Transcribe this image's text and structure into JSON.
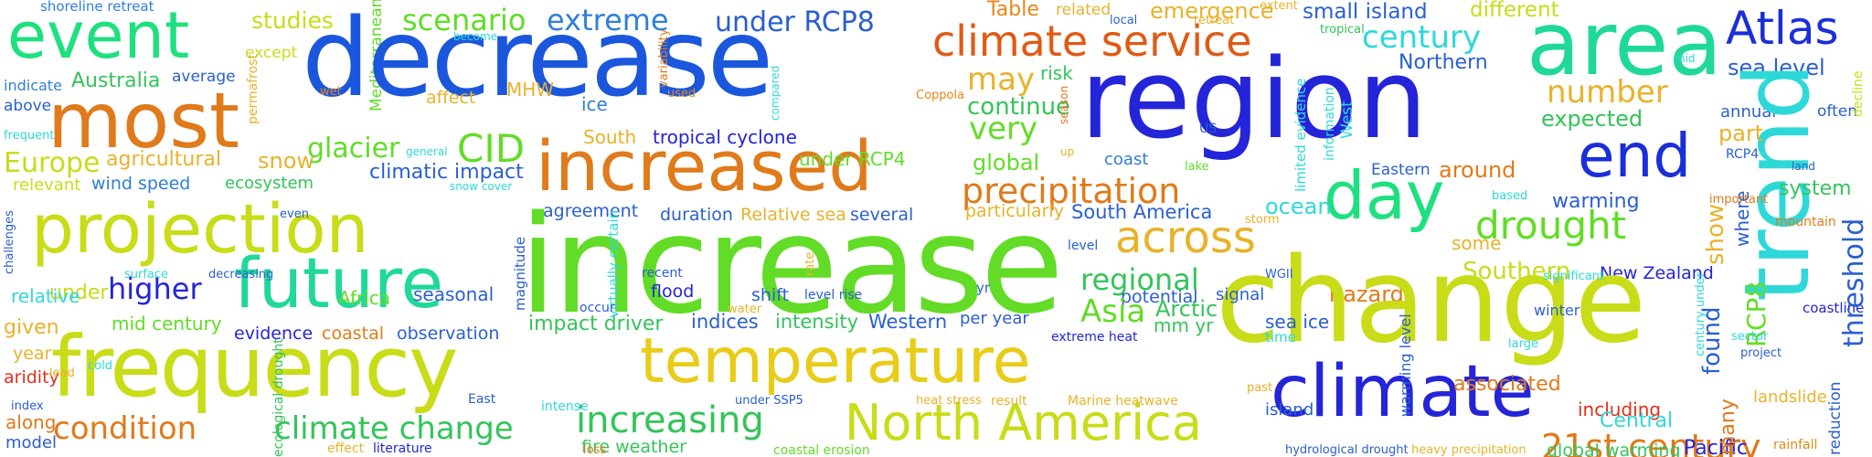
{
  "words": [
    {
      "text": "shoreline retreat",
      "color": "#2f7fd8"
    },
    {
      "text": "event",
      "color": "#1fe07f"
    },
    {
      "text": "studies",
      "color": "#c8dc18"
    },
    {
      "text": "Mediterranean",
      "color": "#62dc26"
    },
    {
      "text": "decrease",
      "color": "#1a57dc"
    },
    {
      "text": "scenario",
      "color": "#62dc26"
    },
    {
      "text": "extreme",
      "color": "#2f7fd8"
    },
    {
      "text": "under RCP8",
      "color": "#2a5fd0"
    },
    {
      "text": "Table",
      "color": "#e88618"
    },
    {
      "text": "related",
      "color": "#e8b22a"
    },
    {
      "text": "emergence",
      "color": "#e8b22a"
    },
    {
      "text": "small island",
      "color": "#2a5fd0"
    },
    {
      "text": "different",
      "color": "#c8dc18"
    },
    {
      "text": "Atlas",
      "color": "#1a2fd8"
    },
    {
      "text": "area",
      "color": "#1fd89a"
    },
    {
      "text": "most",
      "color": "#e07a1a"
    },
    {
      "text": "except",
      "color": "#c8dc18"
    },
    {
      "text": "Australia",
      "color": "#33c45a"
    },
    {
      "text": "average",
      "color": "#2a5fd0"
    },
    {
      "text": "indicate",
      "color": "#2f7fd8"
    },
    {
      "text": "above",
      "color": "#2a5fd0"
    },
    {
      "text": "permafrost",
      "color": "#e8b22a"
    },
    {
      "text": "climate service",
      "color": "#e05a14"
    },
    {
      "text": "century",
      "color": "#2fd8d8"
    },
    {
      "text": "Northern",
      "color": "#2a5fd0"
    },
    {
      "text": "region",
      "color": "#2424d8"
    },
    {
      "text": "sea level",
      "color": "#2a5fd0"
    },
    {
      "text": "may",
      "color": "#e8b22a"
    },
    {
      "text": "risk",
      "color": "#33c45a"
    },
    {
      "text": "ice",
      "color": "#2f7fd8"
    },
    {
      "text": "MHW",
      "color": "#e8b22a"
    },
    {
      "text": "affect",
      "color": "#e8b22a"
    },
    {
      "text": "wet",
      "color": "#e88618"
    },
    {
      "text": "used",
      "color": "#e88618"
    },
    {
      "text": "compared",
      "color": "#2fd8d8"
    },
    {
      "text": "Coppola",
      "color": "#e88618"
    },
    {
      "text": "number",
      "color": "#e8b22a"
    },
    {
      "text": "annual",
      "color": "#2a5fd0"
    },
    {
      "text": "often",
      "color": "#2a5fd0"
    },
    {
      "text": "frequent",
      "color": "#2fd8d8"
    },
    {
      "text": "Europe",
      "color": "#c8dc18"
    },
    {
      "text": "agricultural",
      "color": "#e8b22a"
    },
    {
      "text": "snow",
      "color": "#e8b22a"
    },
    {
      "text": "glacier",
      "color": "#62dc26"
    },
    {
      "text": "CID",
      "color": "#62dc26"
    },
    {
      "text": "South",
      "color": "#e8b22a"
    },
    {
      "text": "tropical cyclone",
      "color": "#2424d8"
    },
    {
      "text": "increased",
      "color": "#e07a1a"
    },
    {
      "text": "continue",
      "color": "#33c45a"
    },
    {
      "text": "very",
      "color": "#62dc26"
    },
    {
      "text": "expected",
      "color": "#33c45a"
    },
    {
      "text": "end",
      "color": "#1a2fd8"
    },
    {
      "text": "trend",
      "color": "#2fd8d8"
    },
    {
      "text": "relevant",
      "color": "#c8dc18"
    },
    {
      "text": "wind speed",
      "color": "#2f7fd8"
    },
    {
      "text": "ecosystem",
      "color": "#33c45a"
    },
    {
      "text": "under RCP4",
      "color": "#62dc26"
    },
    {
      "text": "climatic impact",
      "color": "#2a5fd0"
    },
    {
      "text": "global",
      "color": "#62dc26"
    },
    {
      "text": "coast",
      "color": "#2f7fd8"
    },
    {
      "text": "precipitation",
      "color": "#e07a1a"
    },
    {
      "text": "day",
      "color": "#1fe07f"
    },
    {
      "text": "around",
      "color": "#e07a1a"
    },
    {
      "text": "part",
      "color": "#e8b22a"
    },
    {
      "text": "projection",
      "color": "#c8dc18"
    },
    {
      "text": "agreement",
      "color": "#2a5fd0"
    },
    {
      "text": "South America",
      "color": "#2a5fd0"
    },
    {
      "text": "ocean",
      "color": "#2fd8d8"
    },
    {
      "text": "warming",
      "color": "#2a5fd0"
    },
    {
      "text": "system",
      "color": "#33c45a"
    },
    {
      "text": "increase",
      "color": "#62dc26"
    },
    {
      "text": "Relative sea",
      "color": "#e8b22a"
    },
    {
      "text": "duration",
      "color": "#2a5fd0"
    },
    {
      "text": "several",
      "color": "#2a5fd0"
    },
    {
      "text": "particularly",
      "color": "#e8b22a"
    },
    {
      "text": "drought",
      "color": "#62dc26"
    },
    {
      "text": "some",
      "color": "#e8b22a"
    },
    {
      "text": "show",
      "color": "#e8b22a"
    },
    {
      "text": "where",
      "color": "#2a5fd0"
    },
    {
      "text": "across",
      "color": "#e8b22a"
    },
    {
      "text": "future",
      "color": "#1fd89a"
    },
    {
      "text": "higher",
      "color": "#2424d8"
    },
    {
      "text": "under",
      "color": "#c8dc18"
    },
    {
      "text": "seasonal",
      "color": "#2a5fd0"
    },
    {
      "text": "Africa",
      "color": "#62dc26"
    },
    {
      "text": "relative",
      "color": "#2fd8d8"
    },
    {
      "text": "flood",
      "color": "#2424d8"
    },
    {
      "text": "regional",
      "color": "#33c45a"
    },
    {
      "text": "hazard",
      "color": "#e07a1a"
    },
    {
      "text": "Southern",
      "color": "#c8dc18"
    },
    {
      "text": "New Zealand",
      "color": "#2424d8"
    },
    {
      "text": "change",
      "color": "#c8dc18"
    },
    {
      "text": "shift",
      "color": "#2a5fd0"
    },
    {
      "text": "potential",
      "color": "#2a5fd0"
    },
    {
      "text": "signal",
      "color": "#2a5fd0"
    },
    {
      "text": "Asia",
      "color": "#62dc26"
    },
    {
      "text": "Arctic",
      "color": "#33c45a"
    },
    {
      "text": "given",
      "color": "#e8b22a"
    },
    {
      "text": "mid century",
      "color": "#62dc26"
    },
    {
      "text": "indices",
      "color": "#2a5fd0"
    },
    {
      "text": "intensity",
      "color": "#33c45a"
    },
    {
      "text": "Western",
      "color": "#2a5fd0"
    },
    {
      "text": "per year",
      "color": "#2a5fd0"
    },
    {
      "text": "mm yr",
      "color": "#33c45a"
    },
    {
      "text": "sea ice",
      "color": "#2a5fd0"
    },
    {
      "text": "winter",
      "color": "#2a5fd0"
    },
    {
      "text": "coastline",
      "color": "#2424d8"
    },
    {
      "text": "evidence",
      "color": "#2424d8"
    },
    {
      "text": "coastal",
      "color": "#e07a1a"
    },
    {
      "text": "observation",
      "color": "#2a5fd0"
    },
    {
      "text": "impact driver",
      "color": "#33c45a"
    },
    {
      "text": "year",
      "color": "#e8b22a"
    },
    {
      "text": "frequency",
      "color": "#c8dc18"
    },
    {
      "text": "temperature",
      "color": "#e8cc18"
    },
    {
      "text": "extreme heat",
      "color": "#2424d8"
    },
    {
      "text": "time",
      "color": "#2fd8d8"
    },
    {
      "text": "large",
      "color": "#2fd8d8"
    },
    {
      "text": "project",
      "color": "#2a5fd0"
    },
    {
      "text": "aridity",
      "color": "#e0301a"
    },
    {
      "text": "climate",
      "color": "#2424d8"
    },
    {
      "text": "associated",
      "color": "#e07a1a"
    },
    {
      "text": "found",
      "color": "#2a5fd0"
    },
    {
      "text": "RCP8",
      "color": "#62dc26"
    },
    {
      "text": "threshold",
      "color": "#2a5fd0"
    },
    {
      "text": "condition",
      "color": "#e07a1a"
    },
    {
      "text": "climate change",
      "color": "#33c45a"
    },
    {
      "text": "increasing",
      "color": "#33c45a"
    },
    {
      "text": "North America",
      "color": "#c8dc18"
    },
    {
      "text": "island",
      "color": "#2a5fd0"
    },
    {
      "text": "including",
      "color": "#e0301a"
    },
    {
      "text": "Central",
      "color": "#2fd8d8"
    },
    {
      "text": "21st century",
      "color": "#e07a1a"
    },
    {
      "text": "along",
      "color": "#e07a1a"
    },
    {
      "text": "model",
      "color": "#2a5fd0"
    },
    {
      "text": "fire weather",
      "color": "#33c45a"
    },
    {
      "text": "global warming",
      "color": "#33c45a"
    },
    {
      "text": "Pacific",
      "color": "#2424d8"
    },
    {
      "text": "many",
      "color": "#e07a1a"
    },
    {
      "text": "landslide",
      "color": "#e8b22a"
    },
    {
      "text": "reduction",
      "color": "#2a5fd0"
    },
    {
      "text": "rainfall",
      "color": "#e88618"
    },
    {
      "text": "literature",
      "color": "#2424d8"
    },
    {
      "text": "effect",
      "color": "#e8b22a"
    },
    {
      "text": "loss",
      "color": "#e07a1a"
    },
    {
      "text": "coastal erosion",
      "color": "#62dc26"
    },
    {
      "text": "hydrological drought",
      "color": "#2a5fd0"
    },
    {
      "text": "heavy precipitation",
      "color": "#e8b22a"
    },
    {
      "text": "under SSP5",
      "color": "#2a5fd0"
    },
    {
      "text": "heat stress",
      "color": "#e8b22a"
    },
    {
      "text": "result",
      "color": "#e8b22a"
    },
    {
      "text": "Marine heatwave",
      "color": "#e8b22a"
    },
    {
      "text": "East",
      "color": "#2a5fd0"
    },
    {
      "text": "intense",
      "color": "#2fd8d8"
    },
    {
      "text": "index",
      "color": "#2a5fd0"
    },
    {
      "text": "cold",
      "color": "#2fd8d8"
    },
    {
      "text": "lead",
      "color": "#e8b22a"
    },
    {
      "text": "surface",
      "color": "#2fd8d8"
    },
    {
      "text": "decreasing",
      "color": "#2a5fd0"
    },
    {
      "text": "even",
      "color": "#2a5fd0"
    },
    {
      "text": "challenges",
      "color": "#2a5fd0"
    },
    {
      "text": "general",
      "color": "#2fd8d8"
    },
    {
      "text": "snow cover",
      "color": "#2fd8d8"
    },
    {
      "text": "local",
      "color": "#2a5fd0"
    },
    {
      "text": "retreat",
      "color": "#e8b22a"
    },
    {
      "text": "extent",
      "color": "#e8b22a"
    },
    {
      "text": "tropical",
      "color": "#33c45a"
    },
    {
      "text": "mid",
      "color": "#2fd8d8"
    },
    {
      "text": "decline",
      "color": "#c8dc18"
    },
    {
      "text": "become",
      "color": "#2fd8d8"
    },
    {
      "text": "variability",
      "color": "#e07a1a"
    },
    {
      "text": "season",
      "color": "#e07a1a"
    },
    {
      "text": "up",
      "color": "#e8b22a"
    },
    {
      "text": "US",
      "color": "#2a5fd0"
    },
    {
      "text": "limited evidence",
      "color": "#2fd8d8"
    },
    {
      "text": "information",
      "color": "#2fd8d8"
    },
    {
      "text": "West",
      "color": "#2fd8d8"
    },
    {
      "text": "Eastern",
      "color": "#2a5fd0"
    },
    {
      "text": "based",
      "color": "#2fd8d8"
    },
    {
      "text": "important",
      "color": "#e07a1a"
    },
    {
      "text": "RCP4",
      "color": "#2a5fd0"
    },
    {
      "text": "land",
      "color": "#2a5fd0"
    },
    {
      "text": "mountain",
      "color": "#e07a1a"
    },
    {
      "text": "lake",
      "color": "#62dc26"
    },
    {
      "text": "storm",
      "color": "#e8b22a"
    },
    {
      "text": "magnitude",
      "color": "#2a5fd0"
    },
    {
      "text": "virtually certain",
      "color": "#2fd8d8"
    },
    {
      "text": "occur",
      "color": "#2a5fd0"
    },
    {
      "text": "rate",
      "color": "#e8b22a"
    },
    {
      "text": "recent",
      "color": "#2a5fd0"
    },
    {
      "text": "water",
      "color": "#e8b22a"
    },
    {
      "text": "level rise",
      "color": "#2a5fd0"
    },
    {
      "text": "yr",
      "color": "#2a5fd0"
    },
    {
      "text": "level",
      "color": "#2a5fd0"
    },
    {
      "text": "WGII",
      "color": "#2a5fd0"
    },
    {
      "text": "warming level",
      "color": "#2a5fd0"
    },
    {
      "text": "significant",
      "color": "#2fd8d8"
    },
    {
      "text": "century under",
      "color": "#2fd8d8"
    },
    {
      "text": "sector",
      "color": "#2fd8d8"
    },
    {
      "text": "past",
      "color": "#e8b22a"
    },
    {
      "text": "ecological drought",
      "color": "#33c45a"
    }
  ]
}
